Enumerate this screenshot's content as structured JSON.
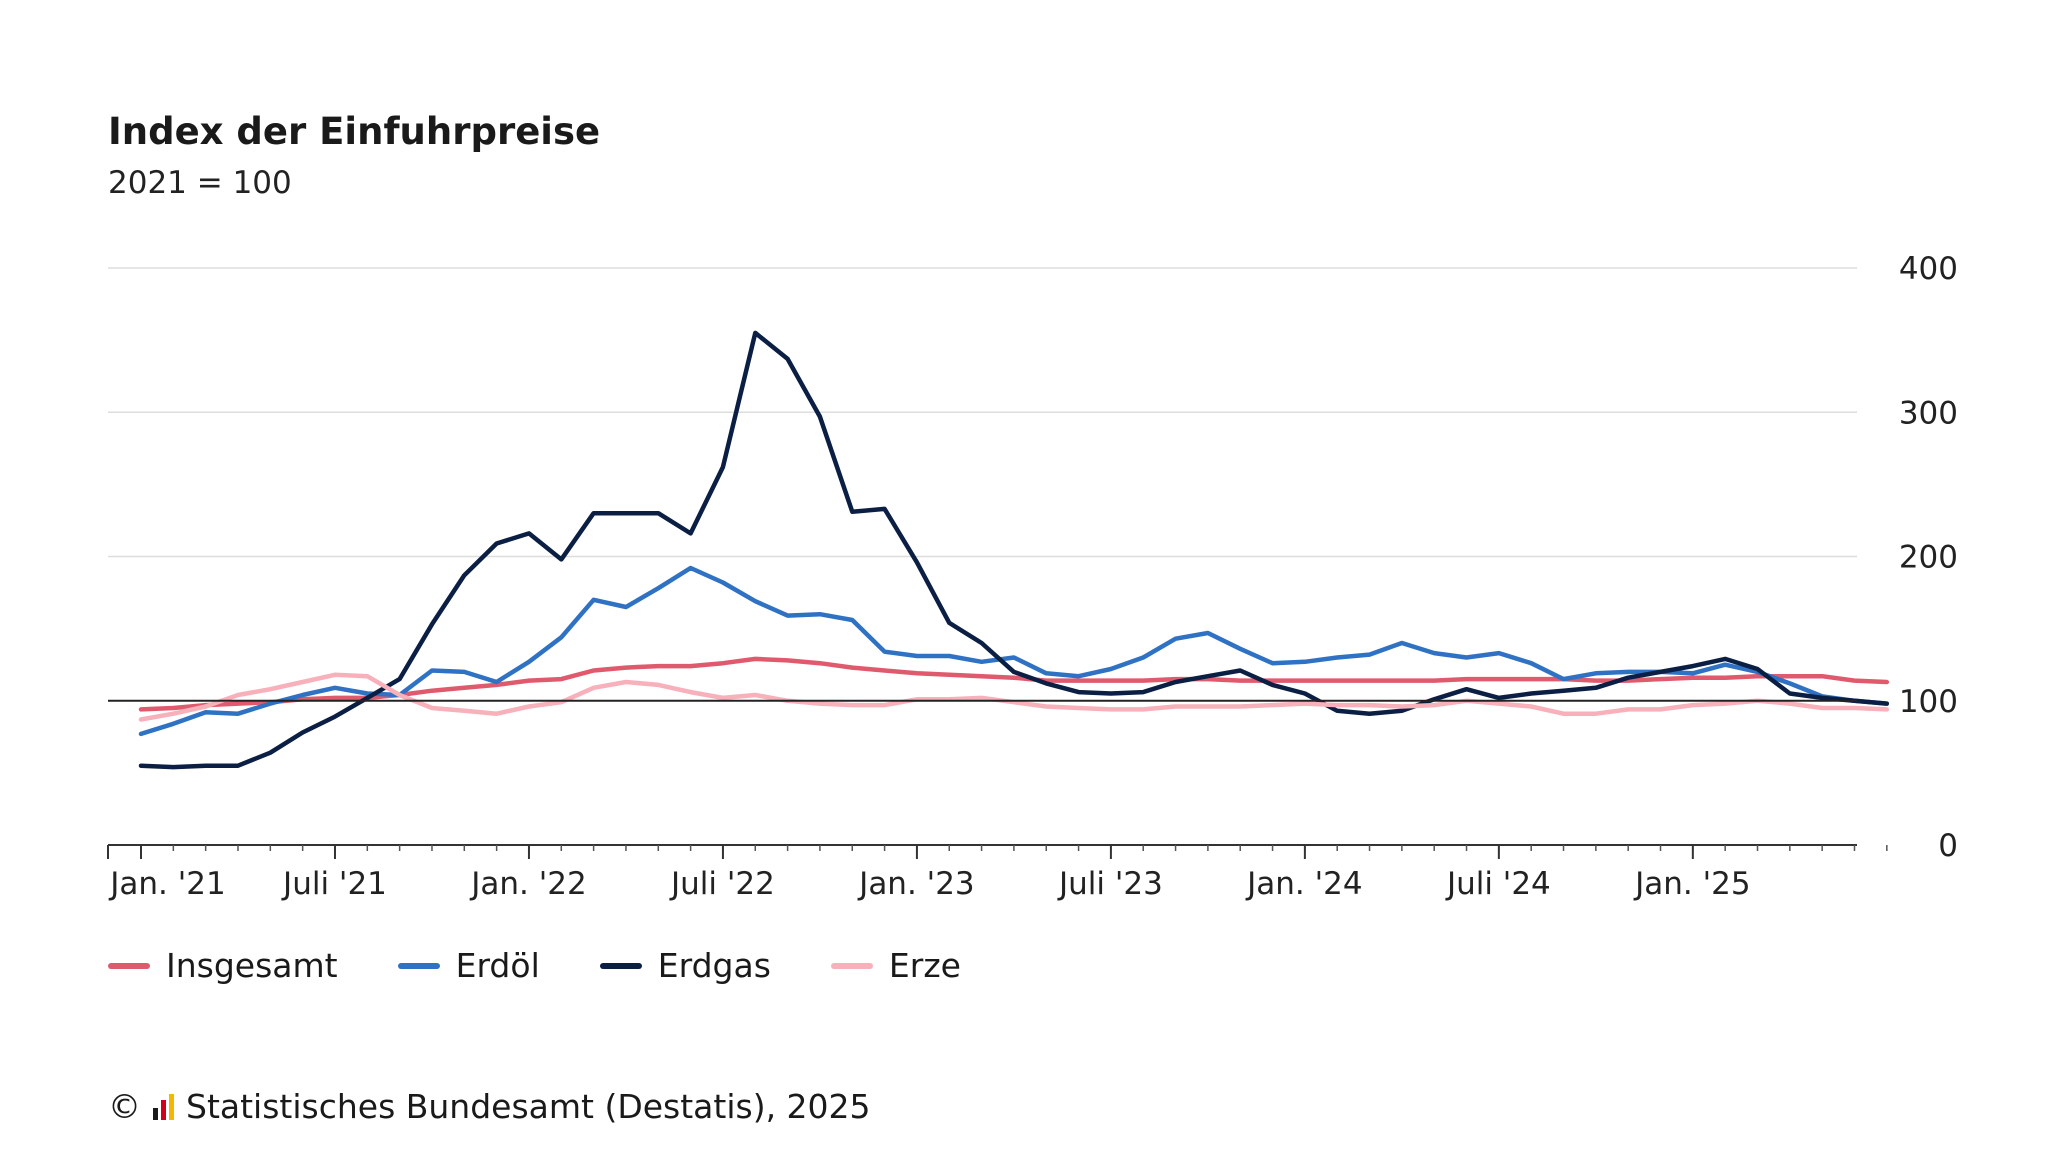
{
  "header": {
    "title": "Index der Einfuhrpreise",
    "subtitle": "2021 = 100"
  },
  "footer": {
    "copyright": "©",
    "source": "Statistisches Bundesamt (Destatis), 2025",
    "logo_icon": "destatis-logo-icon"
  },
  "chart_data": {
    "type": "line",
    "title": "Index der Einfuhrpreise",
    "subtitle": "2021 = 100",
    "xlabel": "",
    "ylabel": "",
    "ylim": [
      0,
      400
    ],
    "yticks": [
      0,
      100,
      200,
      300,
      400
    ],
    "grid": true,
    "legend_position": "bottom-left",
    "reference_line": 100,
    "x_start": "2021-01",
    "xticks": [
      {
        "index": 0,
        "label": "Jan. '21"
      },
      {
        "index": 6,
        "label": "Juli '21"
      },
      {
        "index": 12,
        "label": "Jan. '22"
      },
      {
        "index": 18,
        "label": "Juli '22"
      },
      {
        "index": 24,
        "label": "Jan. '23"
      },
      {
        "index": 30,
        "label": "Juli '23"
      },
      {
        "index": 36,
        "label": "Jan. '24"
      },
      {
        "index": 42,
        "label": "Juli '24"
      },
      {
        "index": 48,
        "label": "Jan. '25"
      }
    ],
    "series": [
      {
        "name": "Insgesamt",
        "color": "#e05a6d",
        "values": [
          94,
          95,
          97,
          98,
          99,
          101,
          102,
          102,
          104,
          107,
          109,
          111,
          114,
          115,
          121,
          123,
          124,
          124,
          126,
          129,
          128,
          126,
          123,
          121,
          119,
          118,
          117,
          116,
          114,
          114,
          114,
          114,
          115,
          115,
          114,
          114,
          114,
          114,
          114,
          114,
          114,
          115,
          115,
          115,
          115,
          114,
          114,
          115,
          116,
          116,
          117,
          117,
          117,
          114,
          113
        ]
      },
      {
        "name": "Erdöl",
        "color": "#2f72c4",
        "values": [
          77,
          84,
          92,
          91,
          98,
          104,
          109,
          105,
          104,
          121,
          120,
          113,
          127,
          144,
          170,
          165,
          178,
          192,
          182,
          169,
          159,
          160,
          156,
          134,
          131,
          131,
          127,
          130,
          119,
          117,
          122,
          130,
          143,
          147,
          136,
          126,
          127,
          130,
          132,
          140,
          133,
          130,
          133,
          126,
          115,
          119,
          120,
          120,
          119,
          125,
          120,
          112,
          103,
          100,
          98
        ]
      },
      {
        "name": "Erdgas",
        "color": "#0b1f44",
        "values": [
          55,
          54,
          55,
          55,
          64,
          78,
          89,
          102,
          115,
          153,
          187,
          209,
          216,
          198,
          230,
          230,
          230,
          216,
          262,
          355,
          337,
          297,
          231,
          233,
          196,
          154,
          140,
          120,
          112,
          106,
          105,
          106,
          113,
          117,
          121,
          111,
          105,
          93,
          91,
          93,
          101,
          108,
          102,
          105,
          107,
          109,
          116,
          120,
          124,
          129,
          122,
          105,
          102,
          100,
          98
        ]
      },
      {
        "name": "Erze",
        "color": "#f8b0bb",
        "values": [
          87,
          91,
          96,
          104,
          108,
          113,
          118,
          117,
          104,
          95,
          93,
          91,
          96,
          99,
          109,
          113,
          111,
          106,
          102,
          104,
          100,
          98,
          97,
          97,
          101,
          101,
          102,
          99,
          96,
          95,
          94,
          94,
          96,
          96,
          96,
          97,
          98,
          97,
          97,
          96,
          97,
          100,
          98,
          96,
          91,
          91,
          94,
          94,
          97,
          98,
          100,
          98,
          95,
          95,
          94
        ]
      }
    ]
  }
}
